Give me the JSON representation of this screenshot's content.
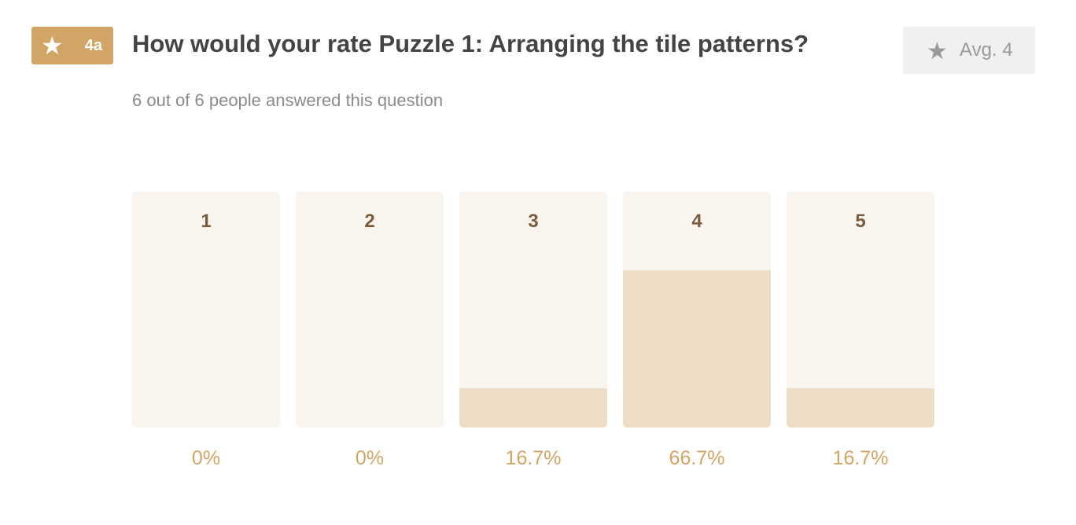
{
  "question": {
    "badge_icon": "star-icon",
    "badge_label": "4a",
    "title": "How would your rate Puzzle 1: Arranging the tile patterns?",
    "answered_text": "6 out of 6 people answered this question"
  },
  "average": {
    "icon": "star-icon",
    "label": "Avg. 4"
  },
  "colors": {
    "accent": "#d1a566",
    "track": "#f9f5ee",
    "fill": "#eddcc6",
    "rating_label": "#7a5c3c"
  },
  "chart_data": {
    "type": "bar",
    "categories": [
      "1",
      "2",
      "3",
      "4",
      "5"
    ],
    "values": [
      0,
      0,
      16.7,
      66.7,
      16.7
    ],
    "value_labels": [
      "0%",
      "0%",
      "16.7%",
      "66.7%",
      "16.7%"
    ],
    "ylim": [
      0,
      100
    ],
    "grid": false
  }
}
